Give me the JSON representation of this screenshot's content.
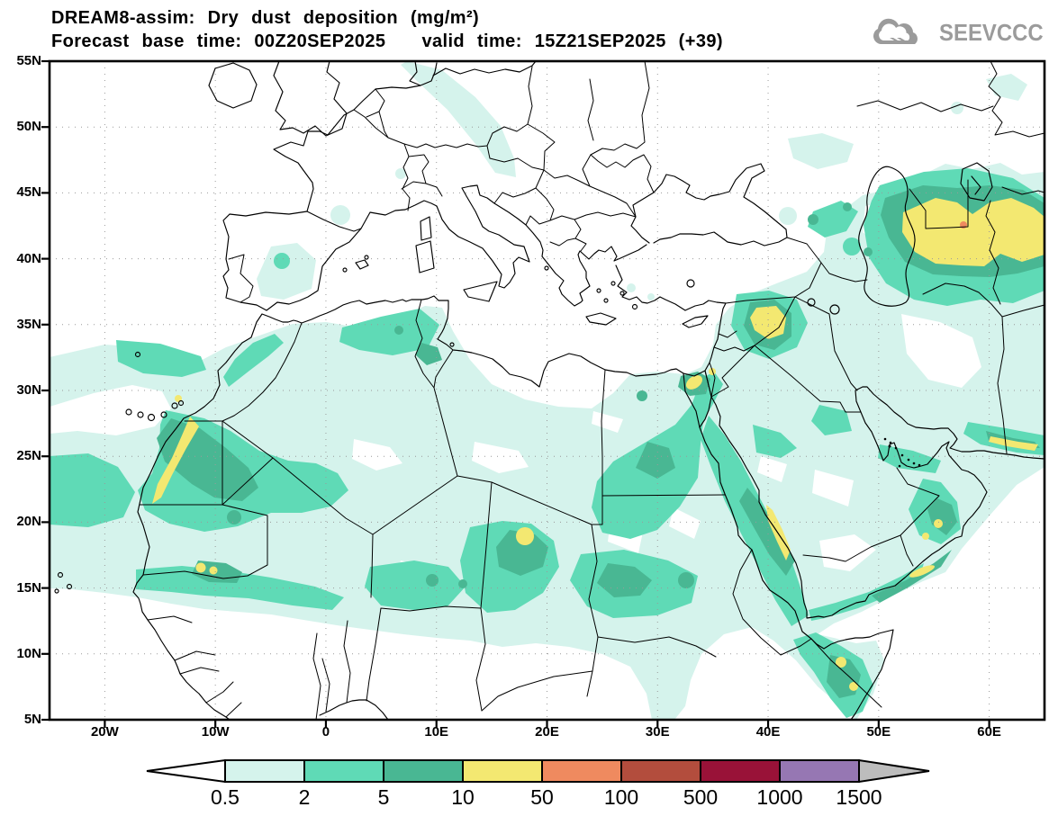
{
  "title": {
    "line1": "DREAM8-assim: Dry dust deposition (mg/m²)",
    "line2_left": "Forecast base time: 00Z20SEP2025",
    "line2_right": "valid time: 15Z21SEP2025 (+39)"
  },
  "logo": {
    "text": "SEEVCCC",
    "color": "#9b9b9b"
  },
  "map": {
    "extent": {
      "lon_min": -25,
      "lon_max": 65,
      "lat_min": 5,
      "lat_max": 55
    },
    "lat_ticks": [
      {
        "label": "55N",
        "lat": 55
      },
      {
        "label": "50N",
        "lat": 50
      },
      {
        "label": "45N",
        "lat": 45
      },
      {
        "label": "40N",
        "lat": 40
      },
      {
        "label": "35N",
        "lat": 35
      },
      {
        "label": "30N",
        "lat": 30
      },
      {
        "label": "25N",
        "lat": 25
      },
      {
        "label": "20N",
        "lat": 20
      },
      {
        "label": "15N",
        "lat": 15
      },
      {
        "label": "10N",
        "lat": 10
      },
      {
        "label": "5N",
        "lat": 5
      }
    ],
    "lon_ticks": [
      {
        "label": "20W",
        "lon": -20
      },
      {
        "label": "10W",
        "lon": -10
      },
      {
        "label": "0",
        "lon": 0
      },
      {
        "label": "10E",
        "lon": 10
      },
      {
        "label": "20E",
        "lon": 20
      },
      {
        "label": "30E",
        "lon": 30
      },
      {
        "label": "40E",
        "lon": 40
      },
      {
        "label": "50E",
        "lon": 50
      },
      {
        "label": "60E",
        "lon": 60
      }
    ]
  },
  "legend": {
    "unit": "mg/m²",
    "levels": [
      "0.5",
      "2",
      "5",
      "10",
      "50",
      "100",
      "500",
      "1000",
      "1500"
    ],
    "colors": [
      "#d5f3ec",
      "#5fdab6",
      "#49b793",
      "#f3e871",
      "#ef8a5f",
      "#b34d3d",
      "#991238",
      "#9677b3"
    ],
    "under_color": "#ffffff",
    "over_color": "#bdbdbd"
  },
  "map_data": {
    "type": "filled-contour-map",
    "variable": "Dry dust deposition",
    "unit": "mg/m²",
    "contour_levels": [
      0.5,
      2,
      5,
      10,
      50,
      100,
      500,
      1000,
      1500
    ],
    "notable_maxima": [
      {
        "region": "Central Asia (Uzbekistan/Turkmenistan)",
        "lon": 57.5,
        "lat": 42,
        "value_range": "50-100"
      },
      {
        "region": "Syria/Iraq",
        "lon": 40,
        "lat": 35,
        "value_range": "10-50"
      },
      {
        "region": "Western Sahara coast",
        "lon": -13.5,
        "lat": 25,
        "value_range": "10-50"
      },
      {
        "region": "Bodele (Chad)",
        "lon": 18,
        "lat": 18.8,
        "value_range": "10-50"
      },
      {
        "region": "Saudi Red Sea coast",
        "lon": 41,
        "lat": 19,
        "value_range": "10-50"
      },
      {
        "region": "Makran coast",
        "lon": 62,
        "lat": 26.3,
        "value_range": "10-50"
      },
      {
        "region": "Gulf of Aden / Oman coast",
        "lon": 54,
        "lat": 16.5,
        "value_range": "10-50"
      },
      {
        "region": "Somalia",
        "lon": 47,
        "lat": 8.5,
        "value_range": "10-50"
      },
      {
        "region": "Nile delta / Levant",
        "lon": 33.3,
        "lat": 30.6,
        "value_range": "10-50"
      },
      {
        "region": "Mali",
        "lon": -10.5,
        "lat": 16.3,
        "value_range": "10-50"
      }
    ]
  }
}
